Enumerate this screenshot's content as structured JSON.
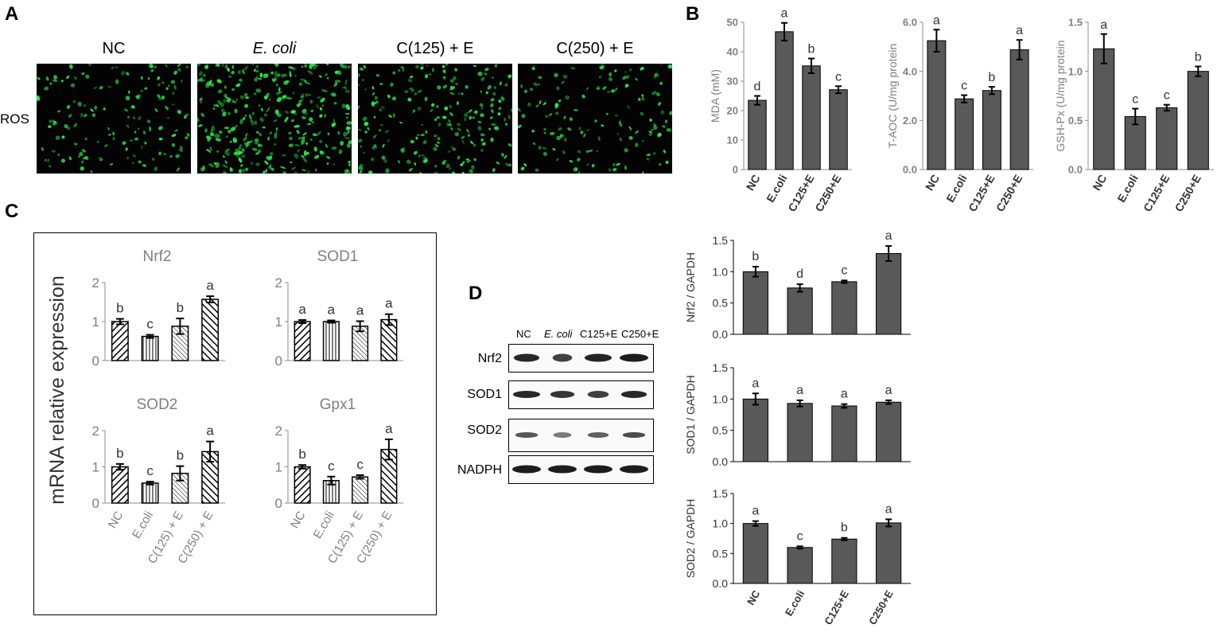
{
  "panel_letters": {
    "a": "A",
    "b": "B",
    "c": "C",
    "d": "D"
  },
  "ros": {
    "row_label": "ROS",
    "titles": [
      "NC",
      "E. coli",
      "C(125) + E",
      "C(250) + E"
    ],
    "color": "#2ee84a"
  },
  "colors": {
    "bar_dark": "#595959",
    "bar_outline": "#000000",
    "axis_gray": "#8c8c8c",
    "text_gray": "#7f7f7f"
  },
  "chart_data": [
    {
      "id": "B-MDA",
      "type": "bar",
      "categories": [
        "NC",
        "E.coli",
        "C125+E",
        "C250+E"
      ],
      "values": [
        23.5,
        46.8,
        35.2,
        27.1
      ],
      "errors": [
        1.5,
        3.0,
        2.5,
        1.2
      ],
      "letters": [
        "d",
        "a",
        "b",
        "c"
      ],
      "ylabel": "MDA (mM)",
      "ylim": [
        0,
        50
      ],
      "yticks": [
        "0",
        "10",
        "20",
        "30",
        "40",
        "50"
      ]
    },
    {
      "id": "B-TAOC",
      "type": "bar",
      "categories": [
        "NC",
        "E.coli",
        "C125+E",
        "C250+E"
      ],
      "values": [
        5.25,
        2.88,
        3.22,
        4.88
      ],
      "errors": [
        0.45,
        0.15,
        0.15,
        0.4
      ],
      "letters": [
        "a",
        "c",
        "b",
        "a"
      ],
      "ylabel": "T-AOC (U/mg protein",
      "ylim": [
        0,
        6
      ],
      "yticks": [
        "0.0",
        "2.0",
        "4.0",
        "6.0"
      ]
    },
    {
      "id": "B-GSHPx",
      "type": "bar",
      "categories": [
        "NC",
        "E.coli",
        "C125+E",
        "C250+E"
      ],
      "values": [
        1.23,
        0.54,
        0.63,
        1.0
      ],
      "errors": [
        0.15,
        0.08,
        0.03,
        0.05
      ],
      "letters": [
        "a",
        "c",
        "c",
        "b"
      ],
      "ylabel": "GSH-Px (U/mg protein",
      "ylim": [
        0,
        1.5
      ],
      "yticks": [
        "0.0",
        "0.5",
        "1.0",
        "1.5"
      ]
    },
    {
      "id": "C-Nrf2",
      "type": "bar",
      "title": "Nrf2",
      "categories": [
        "NC",
        "E.coli",
        "C(125) + E",
        "C(250) + E"
      ],
      "values": [
        1.0,
        0.62,
        0.88,
        1.57
      ],
      "errors": [
        0.07,
        0.04,
        0.2,
        0.08
      ],
      "letters": [
        "b",
        "c",
        "b",
        "a"
      ],
      "ylim": [
        0,
        2
      ],
      "yticks": [
        "0",
        "1",
        "2"
      ]
    },
    {
      "id": "C-SOD1",
      "type": "bar",
      "title": "SOD1",
      "categories": [
        "NC",
        "E.coli",
        "C(125) + E",
        "C(250) + E"
      ],
      "values": [
        1.0,
        1.0,
        0.88,
        1.05
      ],
      "errors": [
        0.04,
        0.03,
        0.13,
        0.14
      ],
      "letters": [
        "a",
        "a",
        "a",
        "a"
      ],
      "ylim": [
        0,
        2
      ],
      "yticks": [
        "0",
        "1",
        "2"
      ]
    },
    {
      "id": "C-SOD2",
      "type": "bar",
      "title": "SOD2",
      "categories": [
        "NC",
        "E.coli",
        "C(125) + E",
        "C(250) + E"
      ],
      "values": [
        1.0,
        0.55,
        0.82,
        1.42
      ],
      "errors": [
        0.08,
        0.04,
        0.2,
        0.28
      ],
      "letters": [
        "b",
        "c",
        "b",
        "a"
      ],
      "ylim": [
        0,
        2
      ],
      "yticks": [
        "0",
        "1",
        "2"
      ]
    },
    {
      "id": "C-Gpx1",
      "type": "bar",
      "title": "Gpx1",
      "categories": [
        "NC",
        "E.coli",
        "C(125) + E",
        "C(250) + E"
      ],
      "values": [
        1.0,
        0.62,
        0.72,
        1.48
      ],
      "errors": [
        0.05,
        0.11,
        0.05,
        0.28
      ],
      "letters": [
        "b",
        "c",
        "c",
        "a"
      ],
      "ylim": [
        0,
        2
      ],
      "yticks": [
        "0",
        "1",
        "2"
      ]
    },
    {
      "id": "D-Nrf2",
      "type": "bar",
      "categories": [
        "NC",
        "E.coli",
        "C125+E",
        "C250+E"
      ],
      "values": [
        1.0,
        0.74,
        0.84,
        1.29
      ],
      "errors": [
        0.08,
        0.06,
        0.02,
        0.12
      ],
      "letters": [
        "b",
        "d",
        "c",
        "a"
      ],
      "ylabel": "Nrf2 / GAPDH",
      "ylim": [
        0,
        1.5
      ],
      "yticks": [
        "0.0",
        "0.5",
        "1.0",
        "1.5"
      ]
    },
    {
      "id": "D-SOD1",
      "type": "bar",
      "categories": [
        "NC",
        "E.coli",
        "C125+E",
        "C250+E"
      ],
      "values": [
        1.0,
        0.93,
        0.89,
        0.95
      ],
      "errors": [
        0.09,
        0.05,
        0.03,
        0.03
      ],
      "letters": [
        "a",
        "a",
        "a",
        "a"
      ],
      "ylabel": "SOD1 / GAPDH",
      "ylim": [
        0,
        1.5
      ],
      "yticks": [
        "0.0",
        "0.5",
        "1.0",
        "1.5"
      ]
    },
    {
      "id": "D-SOD2",
      "type": "bar",
      "categories": [
        "NC",
        "E.coli",
        "C125+E",
        "C250+E"
      ],
      "values": [
        1.0,
        0.6,
        0.74,
        1.01
      ],
      "errors": [
        0.04,
        0.02,
        0.02,
        0.06
      ],
      "letters": [
        "a",
        "c",
        "b",
        "a"
      ],
      "ylabel": "SOD2 / GAPDH",
      "ylim": [
        0,
        1.5
      ],
      "yticks": [
        "0.0",
        "0.5",
        "1.0",
        "1.5"
      ]
    }
  ],
  "panelC": {
    "ylabel": "mRNA relative expression"
  },
  "blot": {
    "lanes": [
      "NC",
      "E. coli",
      "C125+E",
      "C250+E"
    ],
    "rows": [
      "Nrf2",
      "SOD1",
      "SOD2",
      "NADPH"
    ]
  }
}
